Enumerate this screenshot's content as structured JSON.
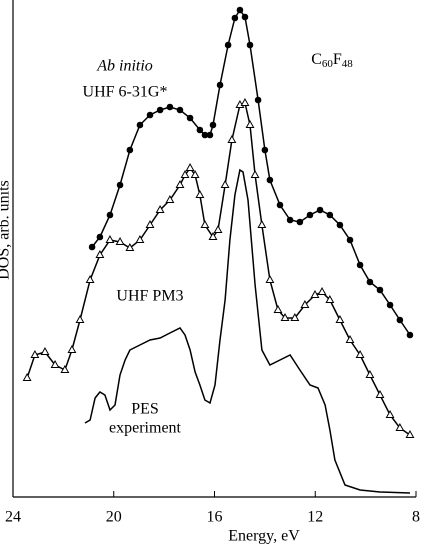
{
  "chart_data": {
    "type": "line",
    "x_label": "Energy, eV",
    "y_label": "DOS, arb. units",
    "xlim": [
      24,
      8
    ],
    "xticks": [
      24,
      20,
      16,
      12,
      8
    ],
    "ylim": [
      0,
      500
    ],
    "annotations": [
      "Ab initio",
      "C60F48",
      "experiment"
    ],
    "series": [
      {
        "name": "UHF 6-31G*",
        "marker": "circle",
        "color": "#000000",
        "x": [
          20.86,
          20.55,
          20.15,
          19.75,
          19.36,
          18.96,
          18.56,
          18.16,
          17.77,
          17.37,
          16.97,
          16.58,
          16.38,
          16.18,
          16.06,
          15.78,
          15.46,
          15.19,
          14.99,
          14.79,
          14.59,
          14.27,
          14.0,
          13.8,
          13.4,
          13.0,
          12.61,
          12.21,
          11.81,
          11.42,
          11.02,
          10.62,
          10.22,
          9.83,
          9.43,
          9.03,
          8.64,
          8.24
        ],
        "values": [
          250,
          260,
          282,
          312,
          347,
          372,
          382,
          387,
          390,
          387,
          379,
          367,
          362,
          362,
          372,
          412,
          452,
          479,
          487,
          480,
          452,
          397,
          347,
          317,
          292,
          277,
          275,
          282,
          287,
          282,
          272,
          257,
          232,
          215,
          207,
          192,
          177,
          162
        ]
      },
      {
        "name": "UHF PM3",
        "marker": "triangle",
        "color": "#000000",
        "x": [
          23.44,
          23.13,
          22.73,
          22.33,
          21.94,
          21.66,
          21.34,
          20.94,
          20.55,
          20.15,
          19.75,
          19.36,
          18.96,
          18.56,
          18.16,
          17.77,
          17.37,
          17.17,
          16.97,
          16.77,
          16.58,
          16.38,
          16.06,
          15.86,
          15.58,
          15.31,
          14.99,
          14.79,
          14.59,
          14.39,
          14.12,
          13.8,
          13.48,
          13.2,
          12.81,
          12.41,
          12.01,
          11.73,
          11.42,
          11.02,
          10.62,
          10.22,
          9.83,
          9.43,
          9.03,
          8.64,
          8.24
        ],
        "values": [
          119,
          142,
          145,
          132,
          127,
          147,
          177,
          217,
          242,
          257,
          255,
          249,
          257,
          272,
          287,
          297,
          312,
          322,
          329,
          322,
          302,
          272,
          260,
          267,
          312,
          357,
          392,
          394,
          372,
          322,
          272,
          217,
          187,
          179,
          179,
          192,
          202,
          205,
          197,
          177,
          157,
          142,
          122,
          102,
          82,
          69,
          62
        ]
      },
      {
        "name": "PES",
        "marker": "none",
        "color": "#000000",
        "x": [
          21.14,
          20.94,
          20.74,
          20.55,
          20.35,
          20.15,
          19.95,
          19.75,
          19.55,
          19.36,
          18.96,
          18.56,
          18.16,
          17.77,
          17.37,
          17.17,
          16.97,
          16.77,
          16.58,
          16.38,
          16.18,
          15.98,
          15.78,
          15.58,
          15.39,
          15.19,
          14.99,
          14.87,
          14.67,
          14.39,
          14.12,
          13.8,
          13.4,
          13.0,
          12.61,
          12.21,
          11.89,
          11.61,
          11.42,
          11.22,
          10.82,
          10.22,
          9.43,
          8.24
        ],
        "values": [
          74,
          77,
          99,
          105,
          102,
          87,
          92,
          122,
          137,
          147,
          152,
          157,
          159,
          164,
          169,
          162,
          147,
          125,
          112,
          97,
          94,
          112,
          157,
          197,
          257,
          302,
          327,
          325,
          297,
          212,
          147,
          132,
          137,
          142,
          127,
          112,
          109,
          92,
          67,
          37,
          12,
          7,
          5,
          4
        ]
      }
    ]
  }
}
